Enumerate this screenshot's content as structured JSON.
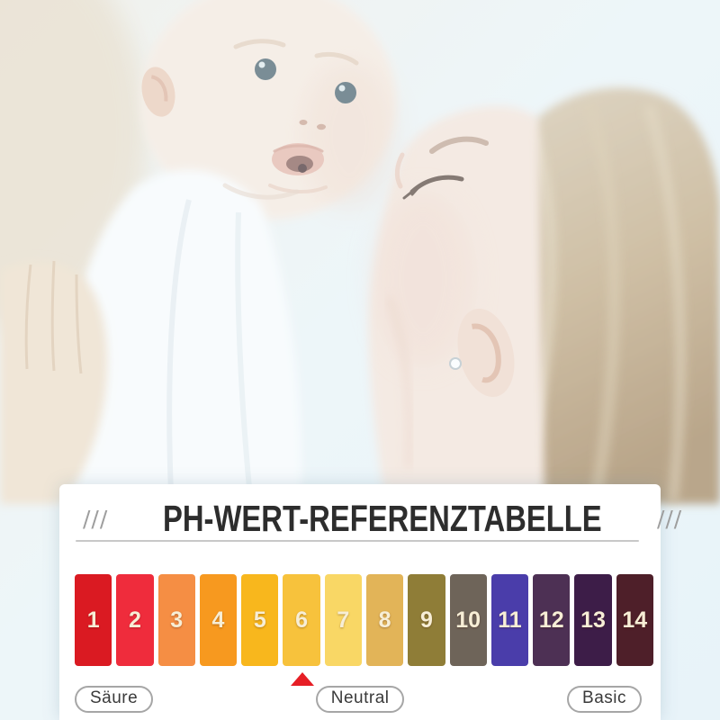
{
  "card": {
    "title": "PH-WERT-REFERENZTABELLE",
    "hatch_left": "///",
    "hatch_right": "///",
    "labels": {
      "acid": "Säure",
      "neutral": "Neutral",
      "basic": "Basic"
    }
  },
  "chart_data": {
    "type": "heatmap",
    "title": "PH-WERT-REFERENZTABELLE",
    "categories": [
      "1",
      "2",
      "3",
      "4",
      "5",
      "6",
      "7",
      "8",
      "9",
      "10",
      "11",
      "12",
      "13",
      "14"
    ],
    "colors": [
      "#da1a22",
      "#ef2c3c",
      "#f58e44",
      "#f7991f",
      "#f8b71d",
      "#f7c23c",
      "#f9d765",
      "#e2b458",
      "#8f7d37",
      "#6e6459",
      "#4a3daa",
      "#4d3054",
      "#3d1d48",
      "#4e1f29"
    ],
    "marker": {
      "category": "6",
      "shape": "triangle-up",
      "color": "#e61e25"
    },
    "zone_labels": [
      "Säure",
      "Neutral",
      "Basic"
    ],
    "legend_position": "none",
    "grid": false
  },
  "photo": {
    "scene": "Mother kissing a baby she holds up in her arms, washed-out high-key photo",
    "background_color": "#eef5f9"
  }
}
